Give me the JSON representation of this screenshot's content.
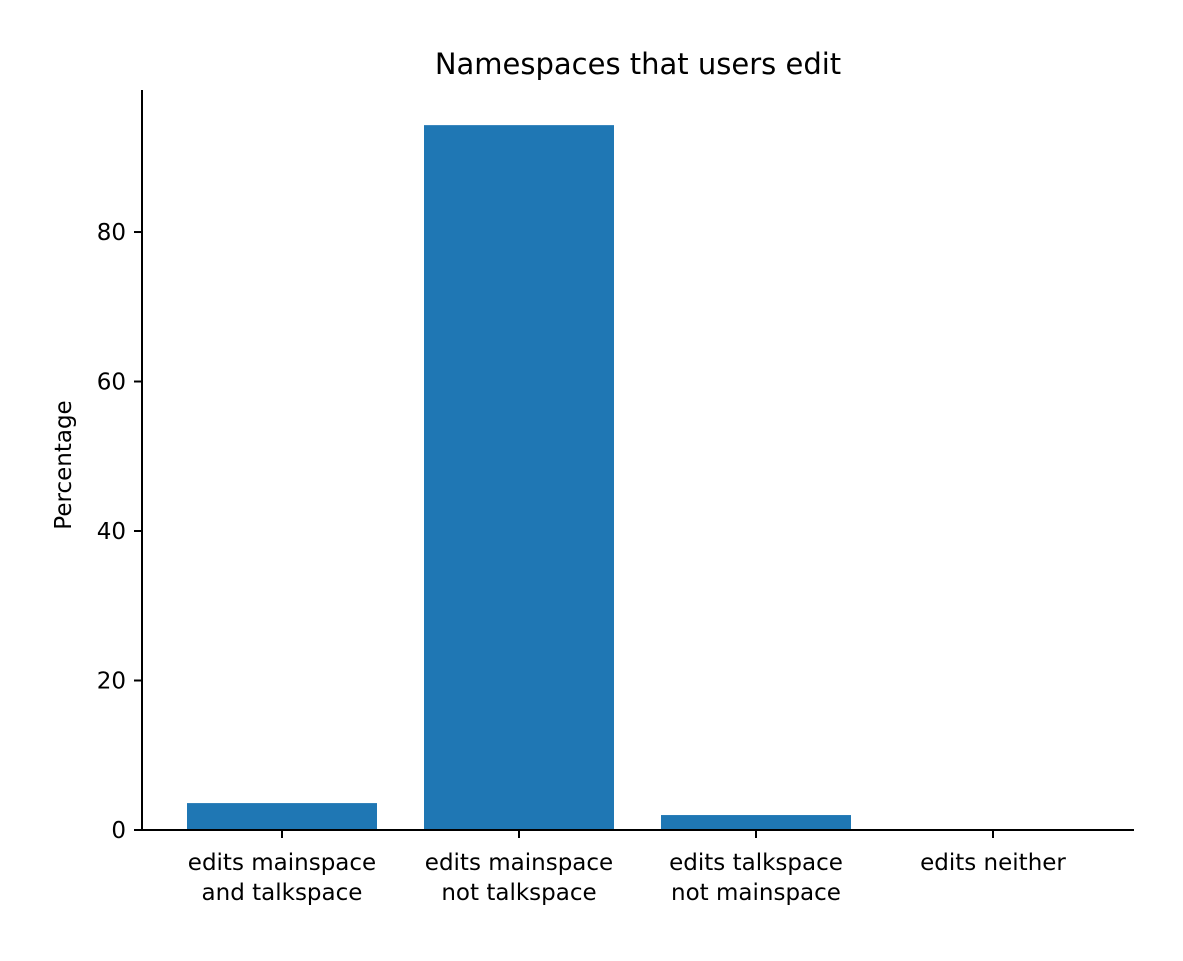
{
  "chart_data": {
    "type": "bar",
    "title": "Namespaces that users edit",
    "xlabel": "",
    "ylabel": "Percentage",
    "categories": [
      [
        "edits mainspace",
        "and talkspace"
      ],
      [
        "edits mainspace",
        "not talkspace"
      ],
      [
        "edits talkspace",
        "not mainspace"
      ],
      [
        "edits neither"
      ]
    ],
    "values": [
      3.6,
      94.3,
      2.0,
      0.0
    ],
    "ylim": [
      0,
      99
    ],
    "yticks": [
      0,
      20,
      40,
      60,
      80
    ],
    "bar_color": "#1f77b4",
    "grid": false,
    "spines": "left-bottom"
  }
}
